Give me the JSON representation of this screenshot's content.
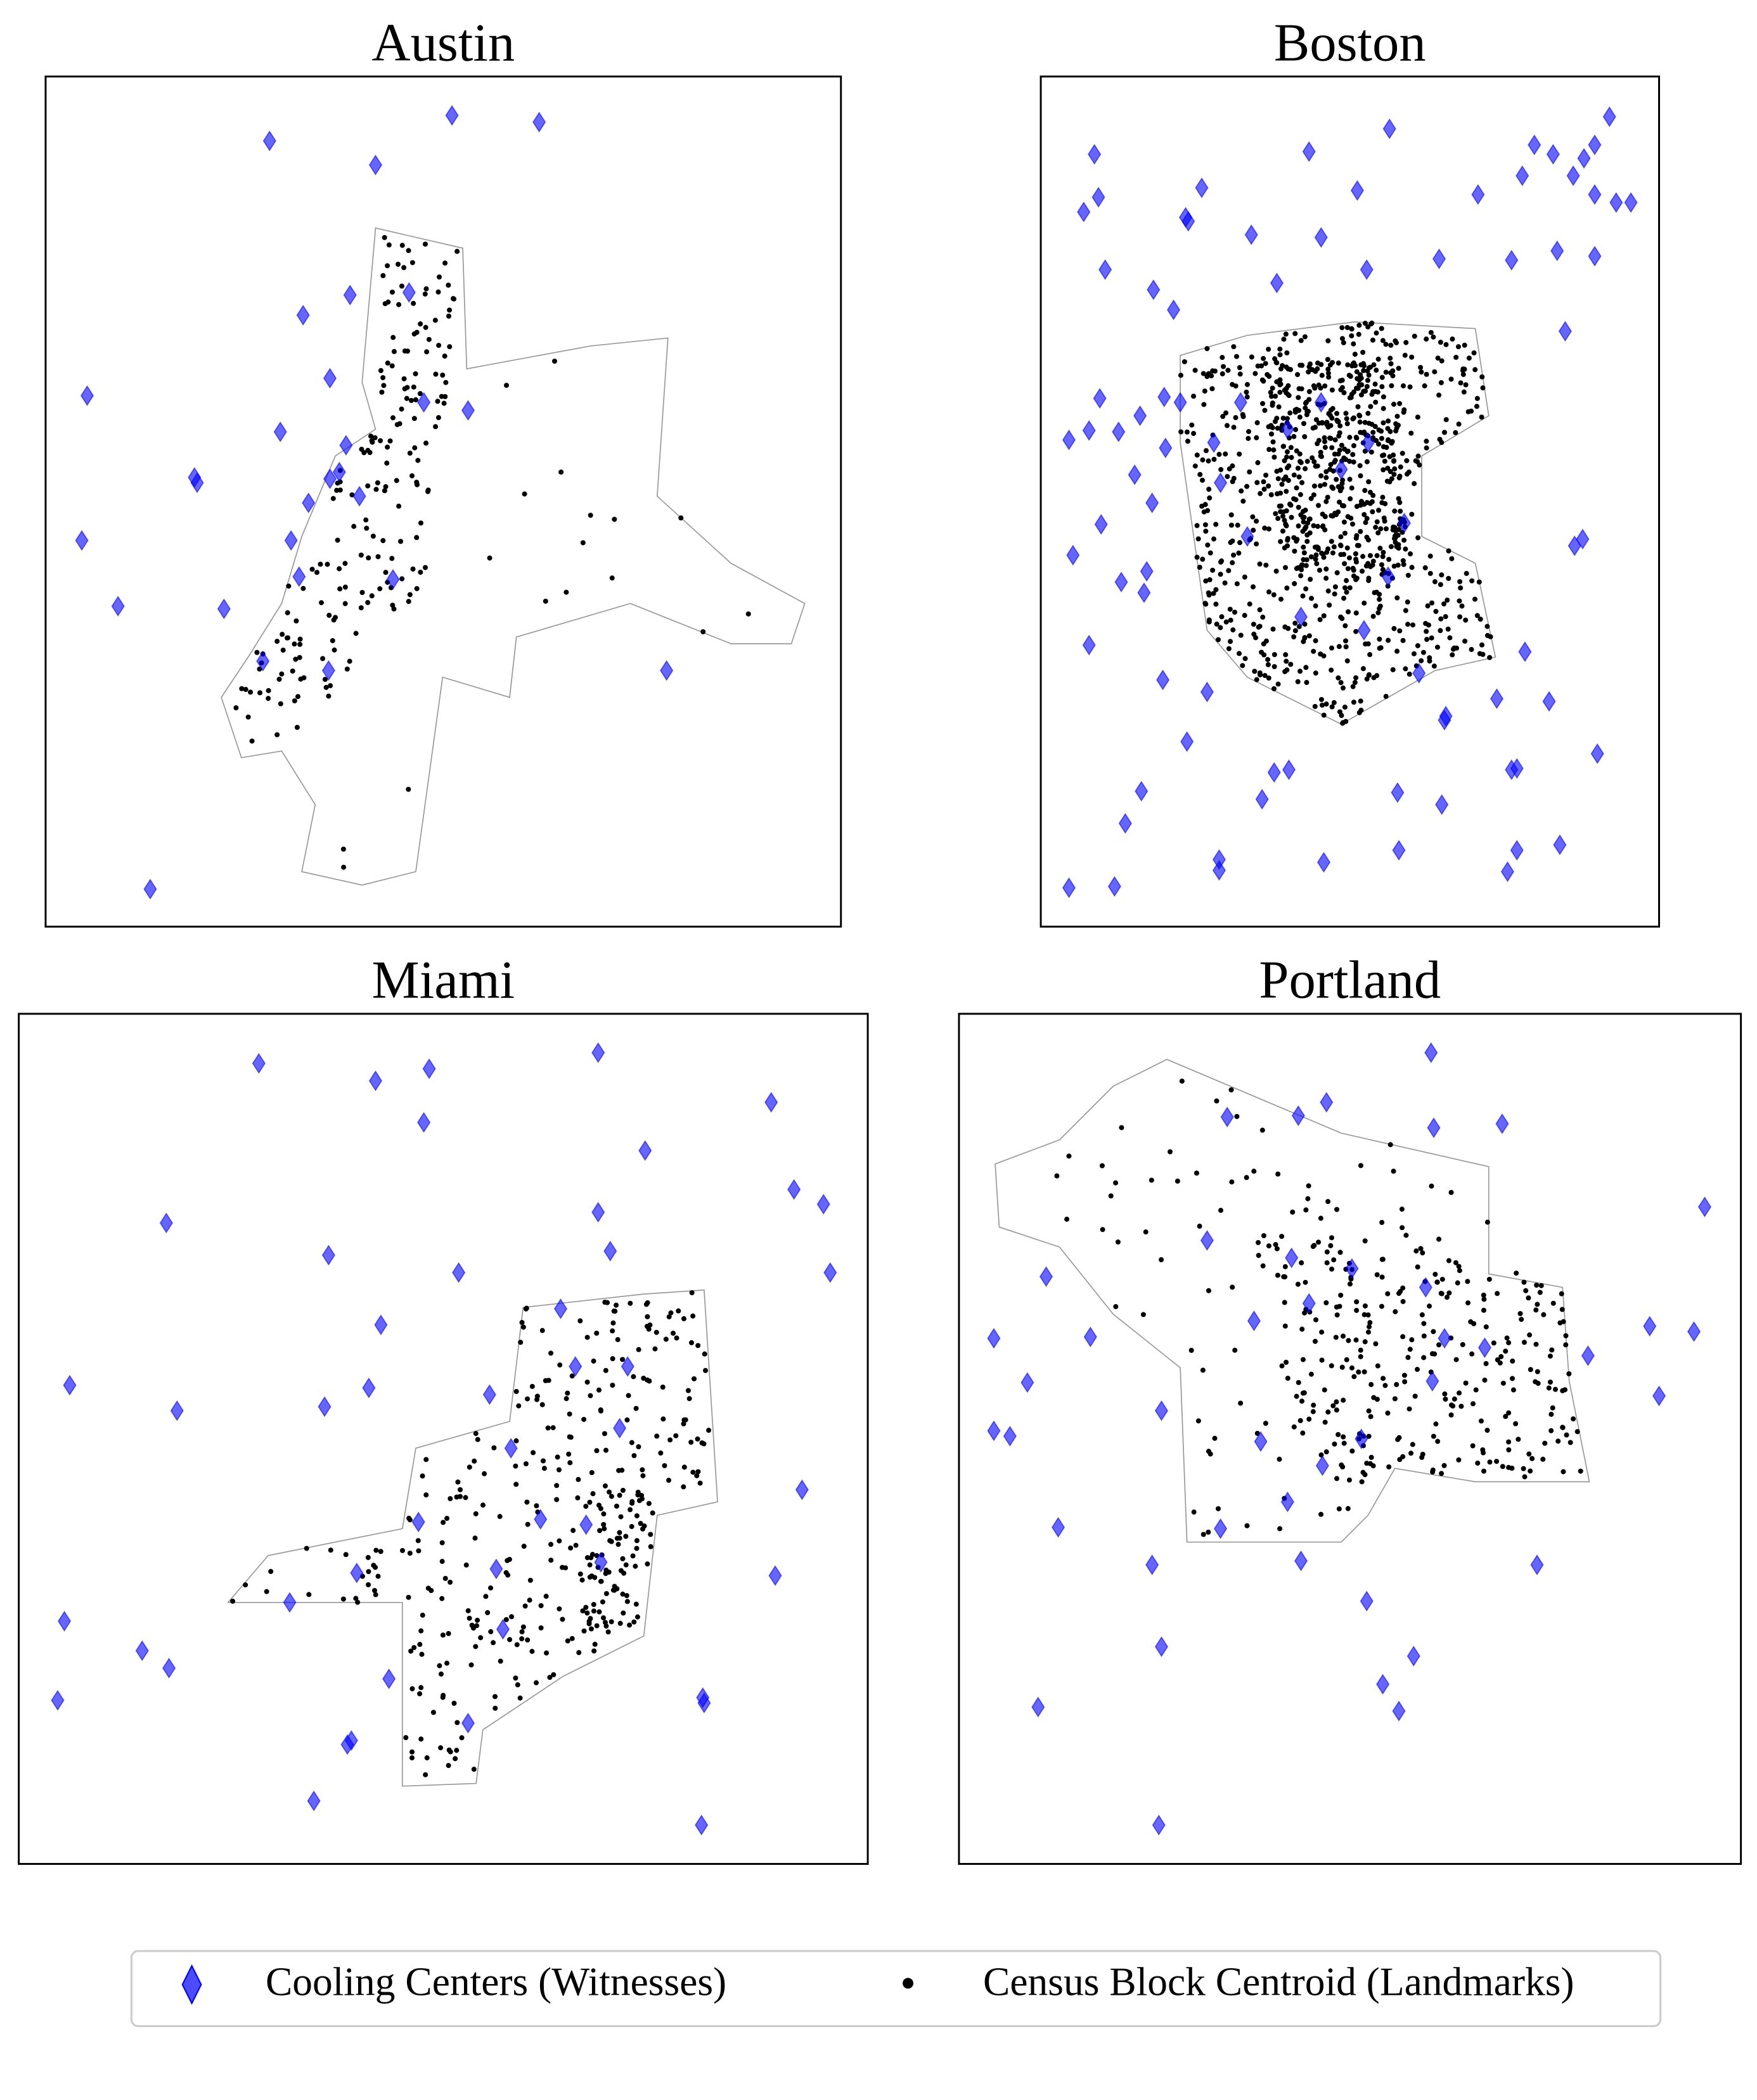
{
  "panels": [
    {
      "title": "Austin"
    },
    {
      "title": "Boston"
    },
    {
      "title": "Miami"
    },
    {
      "title": "Portland"
    }
  ],
  "legend": {
    "items": [
      {
        "label": "Cooling Centers (Witnesses)"
      },
      {
        "label": "Census Block Centroid (Landmarks)"
      }
    ]
  }
}
